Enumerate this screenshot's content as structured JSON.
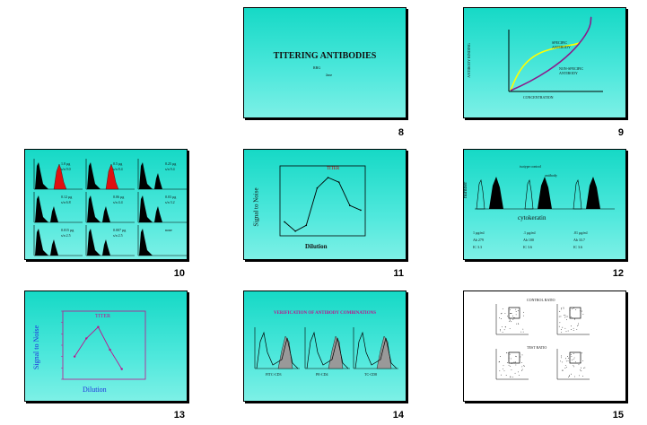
{
  "slides": [
    {
      "number": "8",
      "title": "TITERING ANTIBODIES",
      "sub1": "RRG",
      "sub2": "Jane"
    },
    {
      "number": "9",
      "ylabel": "ANTIBODY BINDING",
      "xlabel": "CONCENTRATION",
      "label_specific": "SPECIFIC ANTIBODY",
      "label_nonspecific": "NON-SPECIFIC ANTIBODY"
    },
    {
      "number": "10",
      "cells": [
        {
          "a": "1.0 µg",
          "b": "s/n 9.0"
        },
        {
          "a": "0.5 µg",
          "b": "s/n 8.4"
        },
        {
          "a": "0.25 µg",
          "b": "s/n 9.4"
        },
        {
          "a": "0.12 µg",
          "b": "s/n 6.8"
        },
        {
          "a": "0.06 µg",
          "b": "s/n 4.4"
        },
        {
          "a": "0.03 µg",
          "b": "s/n 3.2"
        },
        {
          "a": "0.015 µg",
          "b": "s/n 2.5"
        },
        {
          "a": "0.007 µg",
          "b": "s/n 2.5"
        },
        {
          "a": "none",
          "b": ""
        }
      ]
    },
    {
      "number": "11",
      "ylabel": "Signal to Noise",
      "xlabel": "Dilution",
      "titer": "TITER"
    },
    {
      "number": "12",
      "ylabel": "number",
      "xlabel": "cytokeratin",
      "isotype": "isotype control",
      "antibody": "antibody",
      "stats": [
        {
          "conc": "1 µg/ml",
          "ab": "Ab   279",
          "ic": "IC    3.3"
        },
        {
          "conc": ".1 µg/ml",
          "ab": "Ab   100",
          "ic": "IC    3.6"
        },
        {
          "conc": ".01 µg/ml",
          "ab": "Ab   33.7",
          "ic": "IC    3.6"
        }
      ]
    },
    {
      "number": "13",
      "ylabel": "Signal to Noise",
      "xlabel": "Dilution",
      "titer": "TITER"
    },
    {
      "number": "14",
      "title": "VERIFICATION OF ANTIBODY COMBINATIONS",
      "labels": [
        "FITC-CD3",
        "PE-CD4",
        "TC-CD8"
      ]
    },
    {
      "number": "15",
      "title_top": "CONTROL RATIO",
      "title_bottom": "TEST RATIO"
    }
  ],
  "chart_data": [
    {
      "type": "line",
      "title": "TITER",
      "xlabel": "Dilution",
      "ylabel": "Signal to Noise",
      "x": [
        1,
        2,
        3,
        4,
        5,
        6,
        7,
        8
      ],
      "y": [
        1.2,
        0.4,
        0.9,
        4.1,
        5.0,
        4.6,
        2.6,
        2.2
      ],
      "xlim": [
        1,
        8
      ],
      "ylim": [
        0,
        6
      ]
    },
    {
      "type": "line",
      "title": "TITER",
      "xlabel": "Dilution",
      "ylabel": "Signal to Noise",
      "x": [
        1,
        2,
        3,
        4,
        5
      ],
      "y": [
        2.0,
        3.6,
        4.6,
        2.6,
        0.9
      ],
      "xlim": [
        0,
        7
      ],
      "ylim": [
        0,
        6
      ]
    }
  ]
}
